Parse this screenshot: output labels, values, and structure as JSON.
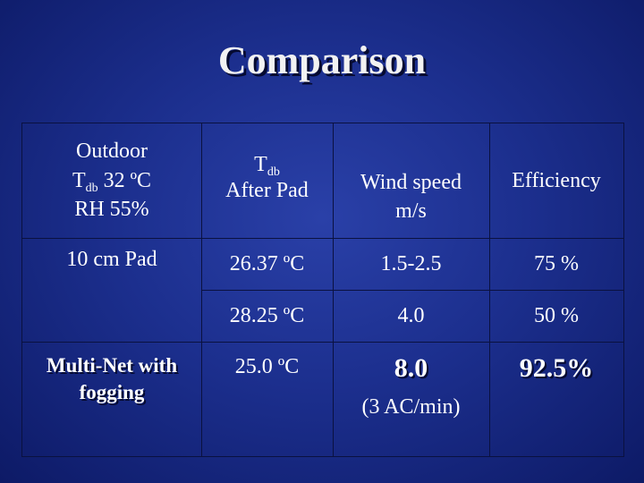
{
  "title": "Comparison",
  "header": {
    "col1": {
      "line1": "Outdoor",
      "tdb_t": "T",
      "tdb_sub": "db",
      "tdb_value": " 32 ºC",
      "rh": "RH  55%"
    },
    "col2": {
      "t": "T",
      "sub": "db",
      "line2": "After Pad"
    },
    "col3": {
      "line1": "Wind speed",
      "line2": "m/s"
    },
    "col4": "Efficiency"
  },
  "rows": [
    {
      "label": "10 cm Pad",
      "temp": "26.37 ºC",
      "wind": "1.5-2.5",
      "eff": "75 %"
    },
    {
      "label": "",
      "temp": "28.25 ºC",
      "wind": "4.0",
      "eff": "50 %"
    },
    {
      "label_line1": "Multi-Net with",
      "label_line2": "fogging",
      "temp": "25.0 ºC",
      "wind": "8.0",
      "wind_note": "(3 AC/min)",
      "eff": "92.5%"
    }
  ]
}
